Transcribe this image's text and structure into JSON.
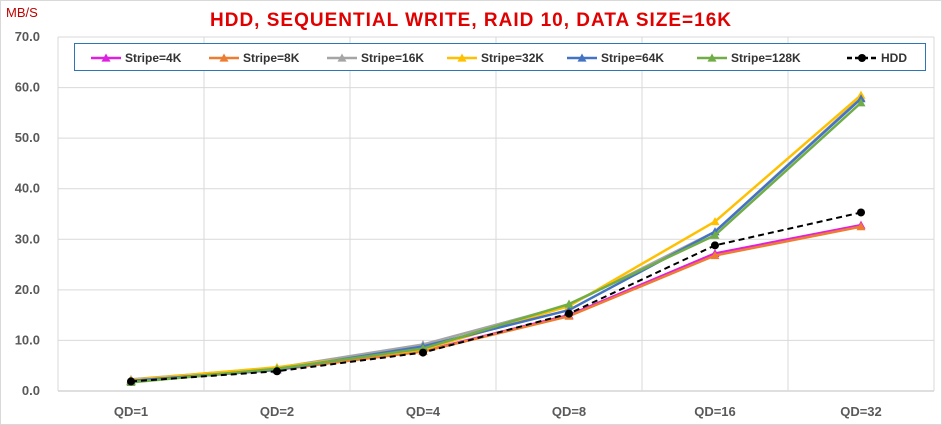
{
  "chart_data": {
    "type": "line",
    "title": "HDD, SEQUENTIAL WRITE, RAID 10, DATA SIZE=16K",
    "ylabel": "MB/S",
    "xlabel": "",
    "categories": [
      "QD=1",
      "QD=2",
      "QD=4",
      "QD=8",
      "QD=16",
      "QD=32"
    ],
    "ylim": [
      0,
      70
    ],
    "yticks": [
      "0.0",
      "10.0",
      "20.0",
      "30.0",
      "40.0",
      "50.0",
      "60.0",
      "70.0"
    ],
    "grid": true,
    "legend_position": "top",
    "series": [
      {
        "name": "Stripe=4K",
        "color": "#e020e0",
        "marker": "triangle",
        "dashed": false,
        "values": [
          1.9,
          4.2,
          7.9,
          15.0,
          27.2,
          32.8
        ]
      },
      {
        "name": "Stripe=8K",
        "color": "#ed7d31",
        "marker": "triangle",
        "dashed": false,
        "values": [
          1.9,
          4.2,
          7.8,
          14.8,
          26.8,
          32.5
        ]
      },
      {
        "name": "Stripe=16K",
        "color": "#a5a5a5",
        "marker": "triangle",
        "dashed": false,
        "values": [
          2.3,
          4.6,
          9.2,
          17.0,
          31.5,
          58.0
        ]
      },
      {
        "name": "Stripe=32K",
        "color": "#ffc000",
        "marker": "triangle",
        "dashed": false,
        "values": [
          2.2,
          4.7,
          8.2,
          16.8,
          33.5,
          58.5
        ]
      },
      {
        "name": "Stripe=64K",
        "color": "#4472c4",
        "marker": "triangle",
        "dashed": false,
        "values": [
          2.0,
          4.2,
          8.8,
          16.0,
          31.5,
          57.8
        ]
      },
      {
        "name": "Stripe=128K",
        "color": "#70ad47",
        "marker": "triangle",
        "dashed": false,
        "values": [
          1.7,
          4.4,
          8.4,
          17.2,
          30.8,
          57.0
        ]
      },
      {
        "name": "HDD",
        "color": "#000000",
        "marker": "circle",
        "dashed": true,
        "values": [
          1.9,
          3.9,
          7.6,
          15.3,
          28.8,
          35.3
        ]
      }
    ]
  }
}
